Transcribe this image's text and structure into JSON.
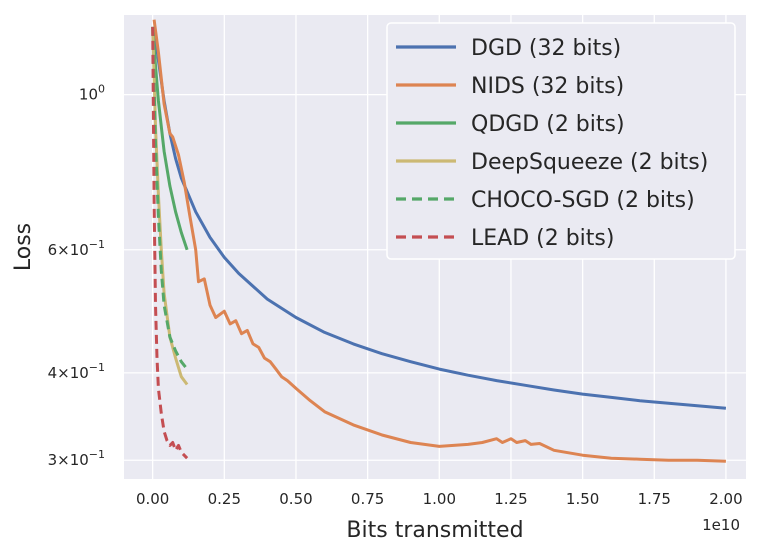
{
  "chart_data": {
    "type": "line",
    "title": "",
    "xlabel": "Bits transmitted",
    "ylabel": "Loss",
    "x_offset_text": "1e10",
    "x_scale": 10000000000.0,
    "xlim": [
      -0.1,
      2.07
    ],
    "y_scale": "log",
    "ylim": [
      0.282,
      1.3
    ],
    "x_ticks": [
      0.0,
      0.25,
      0.5,
      0.75,
      1.0,
      1.25,
      1.5,
      1.75,
      2.0
    ],
    "x_tick_labels": [
      "0.00",
      "0.25",
      "0.50",
      "0.75",
      "1.00",
      "1.25",
      "1.50",
      "1.75",
      "2.00"
    ],
    "y_ticks": [
      {
        "value": 1.0,
        "base": "10",
        "exp": "0"
      },
      {
        "value": 0.6,
        "base": "6×10",
        "exp": "−1"
      },
      {
        "value": 0.4,
        "base": "4×10",
        "exp": "−1"
      },
      {
        "value": 0.3,
        "base": "3×10",
        "exp": "−1"
      }
    ],
    "grid": true,
    "legend_position": "top-right",
    "series": [
      {
        "name": "DGD (32 bits)",
        "color": "#4c72b0",
        "dash": "solid",
        "x": [
          0.005,
          0.02,
          0.04,
          0.06,
          0.08,
          0.1,
          0.15,
          0.2,
          0.25,
          0.3,
          0.4,
          0.5,
          0.6,
          0.7,
          0.8,
          0.9,
          1.0,
          1.1,
          1.2,
          1.3,
          1.4,
          1.5,
          1.6,
          1.7,
          1.8,
          1.9,
          2.0
        ],
        "y": [
          1.25,
          1.12,
          0.98,
          0.88,
          0.81,
          0.76,
          0.68,
          0.625,
          0.585,
          0.555,
          0.51,
          0.48,
          0.457,
          0.44,
          0.426,
          0.415,
          0.405,
          0.397,
          0.39,
          0.384,
          0.378,
          0.373,
          0.369,
          0.365,
          0.362,
          0.359,
          0.356
        ]
      },
      {
        "name": "NIDS (32 bits)",
        "color": "#dd8452",
        "dash": "solid",
        "x": [
          0.005,
          0.02,
          0.04,
          0.06,
          0.07,
          0.09,
          0.11,
          0.13,
          0.15,
          0.16,
          0.18,
          0.2,
          0.22,
          0.25,
          0.27,
          0.29,
          0.31,
          0.33,
          0.35,
          0.37,
          0.39,
          0.41,
          0.43,
          0.45,
          0.47,
          0.5,
          0.55,
          0.6,
          0.7,
          0.8,
          0.9,
          1.0,
          1.05,
          1.1,
          1.15,
          1.2,
          1.22,
          1.25,
          1.27,
          1.3,
          1.32,
          1.35,
          1.4,
          1.5,
          1.6,
          1.7,
          1.8,
          1.9,
          2.0
        ],
        "y": [
          1.28,
          1.15,
          0.97,
          0.88,
          0.87,
          0.82,
          0.75,
          0.67,
          0.6,
          0.54,
          0.545,
          0.5,
          0.48,
          0.49,
          0.47,
          0.475,
          0.455,
          0.46,
          0.44,
          0.435,
          0.42,
          0.415,
          0.405,
          0.395,
          0.39,
          0.38,
          0.365,
          0.352,
          0.337,
          0.326,
          0.318,
          0.314,
          0.315,
          0.316,
          0.318,
          0.322,
          0.318,
          0.322,
          0.318,
          0.32,
          0.316,
          0.317,
          0.31,
          0.305,
          0.302,
          0.301,
          0.3,
          0.3,
          0.299
        ]
      },
      {
        "name": "QDGD (2 bits)",
        "color": "#55a868",
        "dash": "solid",
        "x": [
          0.0,
          0.01,
          0.02,
          0.03,
          0.04,
          0.06,
          0.08,
          0.1,
          0.12
        ],
        "y": [
          1.25,
          1.1,
          0.98,
          0.9,
          0.83,
          0.74,
          0.68,
          0.635,
          0.6
        ]
      },
      {
        "name": "DeepSqueeze (2 bits)",
        "color": "#ccb974",
        "dash": "solid",
        "x": [
          0.0,
          0.01,
          0.02,
          0.03,
          0.04,
          0.06,
          0.08,
          0.1,
          0.12
        ],
        "y": [
          1.25,
          0.9,
          0.72,
          0.6,
          0.52,
          0.45,
          0.42,
          0.395,
          0.385
        ]
      },
      {
        "name": "CHOCO-SGD (2 bits)",
        "color": "#55a868",
        "dash": "dashed",
        "x": [
          0.0,
          0.01,
          0.02,
          0.03,
          0.04,
          0.06,
          0.08,
          0.1,
          0.12
        ],
        "y": [
          1.25,
          0.85,
          0.67,
          0.56,
          0.5,
          0.45,
          0.43,
          0.415,
          0.405
        ]
      },
      {
        "name": "LEAD (2 bits)",
        "color": "#c44e52",
        "dash": "dashed",
        "x": [
          0.0,
          0.005,
          0.01,
          0.015,
          0.02,
          0.03,
          0.04,
          0.05,
          0.06,
          0.07,
          0.08,
          0.09,
          0.1,
          0.12
        ],
        "y": [
          1.25,
          0.7,
          0.5,
          0.42,
          0.38,
          0.35,
          0.33,
          0.32,
          0.315,
          0.318,
          0.31,
          0.315,
          0.308,
          0.302
        ]
      }
    ]
  }
}
